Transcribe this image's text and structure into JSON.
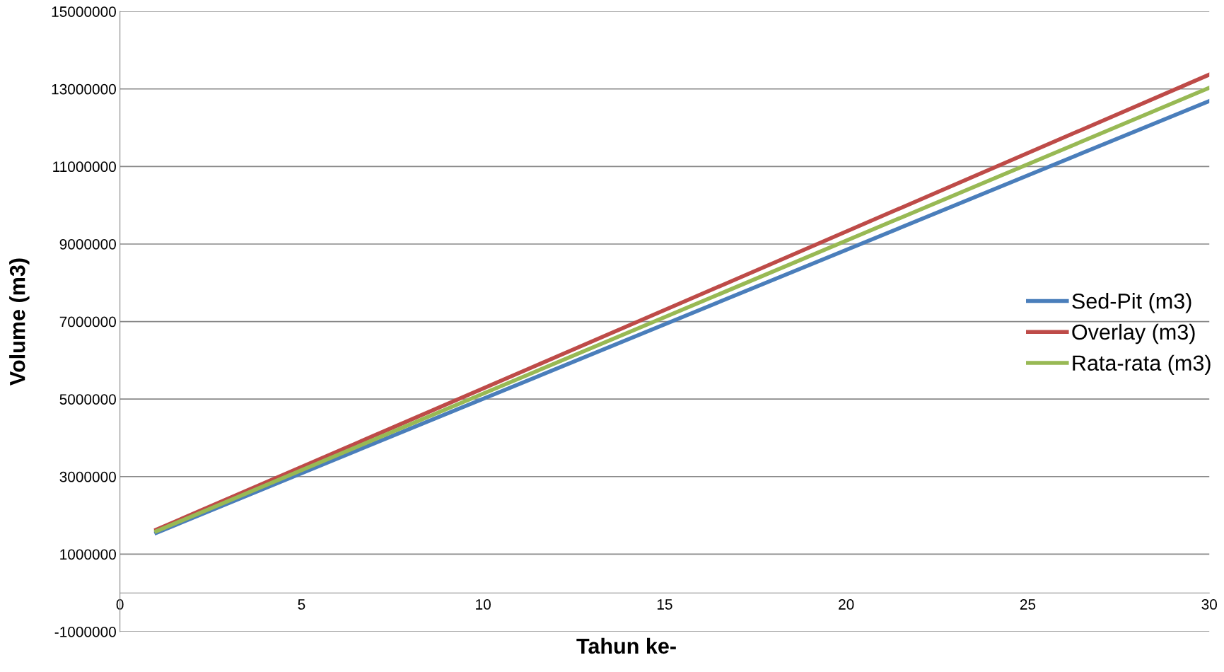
{
  "chart_data": {
    "type": "line",
    "xlabel": "Tahun ke-",
    "ylabel": "Volume (m3)",
    "x": [
      1,
      30
    ],
    "series": [
      {
        "name": "Sed-Pit (m3)",
        "color": "#4a7ebb",
        "values": [
          1550000,
          12690000
        ]
      },
      {
        "name": "Overlay (m3)",
        "color": "#be4b48",
        "values": [
          1630000,
          13370000
        ]
      },
      {
        "name": "Rata-rata (m3)",
        "color": "#98b954",
        "values": [
          1590000,
          13030000
        ]
      }
    ],
    "xlim": [
      0,
      30
    ],
    "xticks": [
      0,
      5,
      10,
      15,
      20,
      25,
      30
    ],
    "ylim": [
      -1000000,
      15000000
    ],
    "yticks": [
      -1000000,
      1000000,
      3000000,
      5000000,
      7000000,
      9000000,
      11000000,
      13000000,
      15000000
    ],
    "grid": "y",
    "legend": "right",
    "marker": "none",
    "line_style": "solid"
  }
}
